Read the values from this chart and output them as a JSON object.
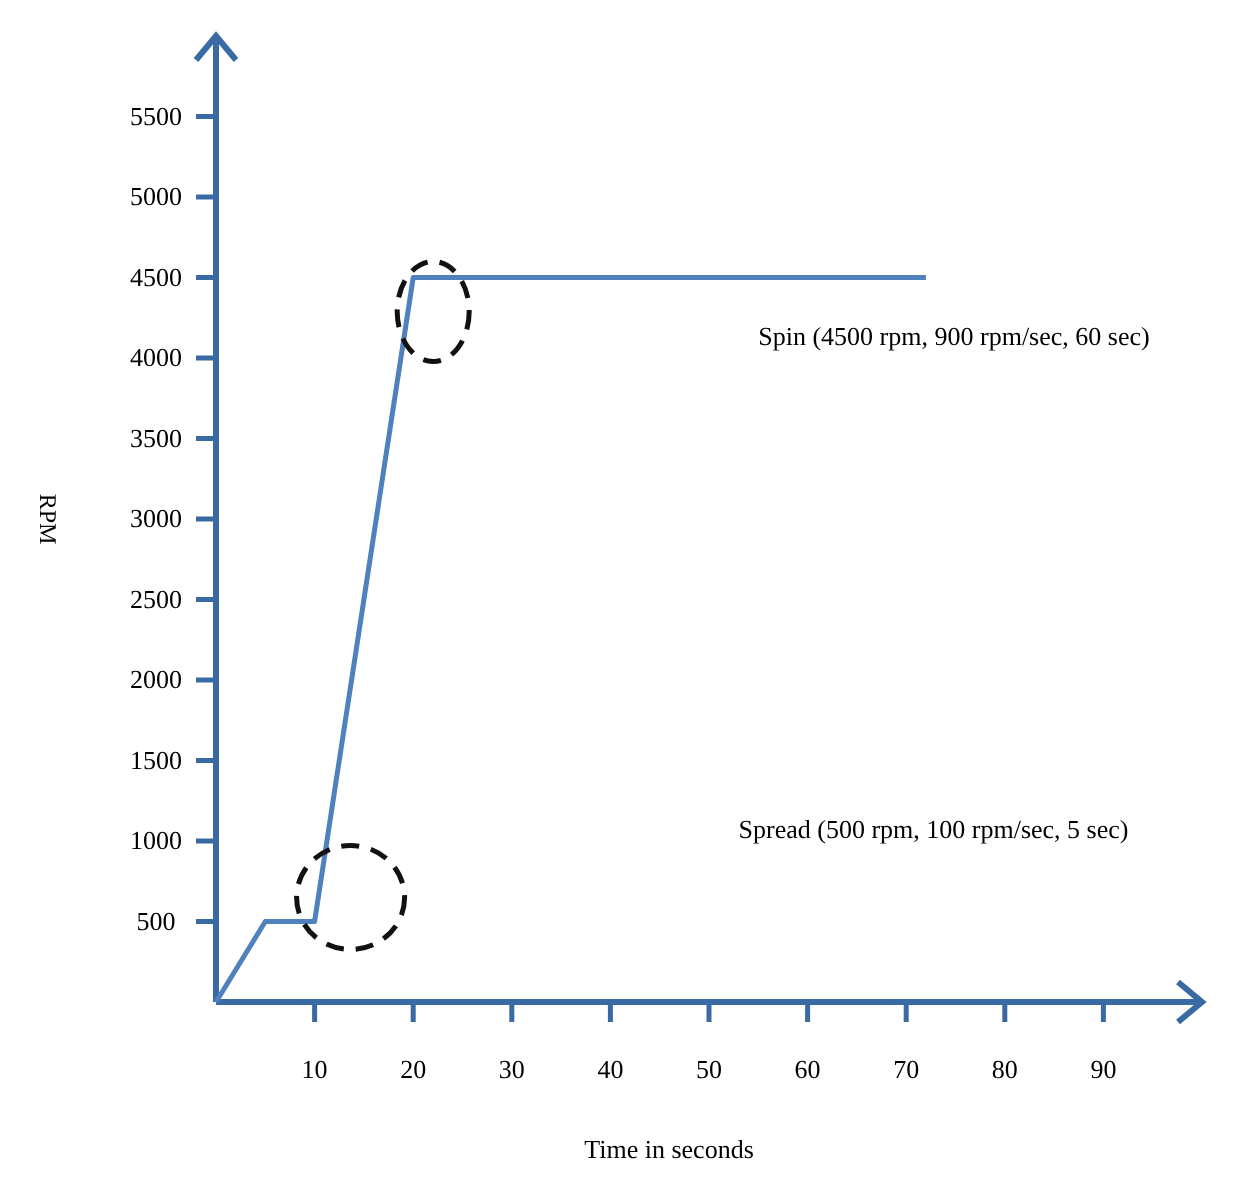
{
  "chart_data": {
    "type": "line",
    "xlabel": "Time in seconds",
    "ylabel": "RPM",
    "x": [
      0,
      5,
      10,
      20,
      72
    ],
    "series": [
      {
        "color": "#4f81bd",
        "values": [
          0,
          500,
          500,
          4500,
          4500
        ]
      }
    ],
    "xlim": [
      0,
      100
    ],
    "ylim": [
      0,
      6000
    ],
    "xticks": [
      10,
      20,
      30,
      40,
      50,
      60,
      70,
      80,
      90
    ],
    "yticks": [
      500,
      1000,
      1500,
      2000,
      2500,
      3000,
      3500,
      4000,
      4500,
      5000,
      5500
    ],
    "grid": false,
    "marker": "none",
    "line_style": "solid",
    "annotations": [
      "Spin (4500 rpm, 900 rpm/sec, 60 sec)",
      "Spread (500 rpm, 100 rpm/sec, 5 sec)"
    ]
  }
}
